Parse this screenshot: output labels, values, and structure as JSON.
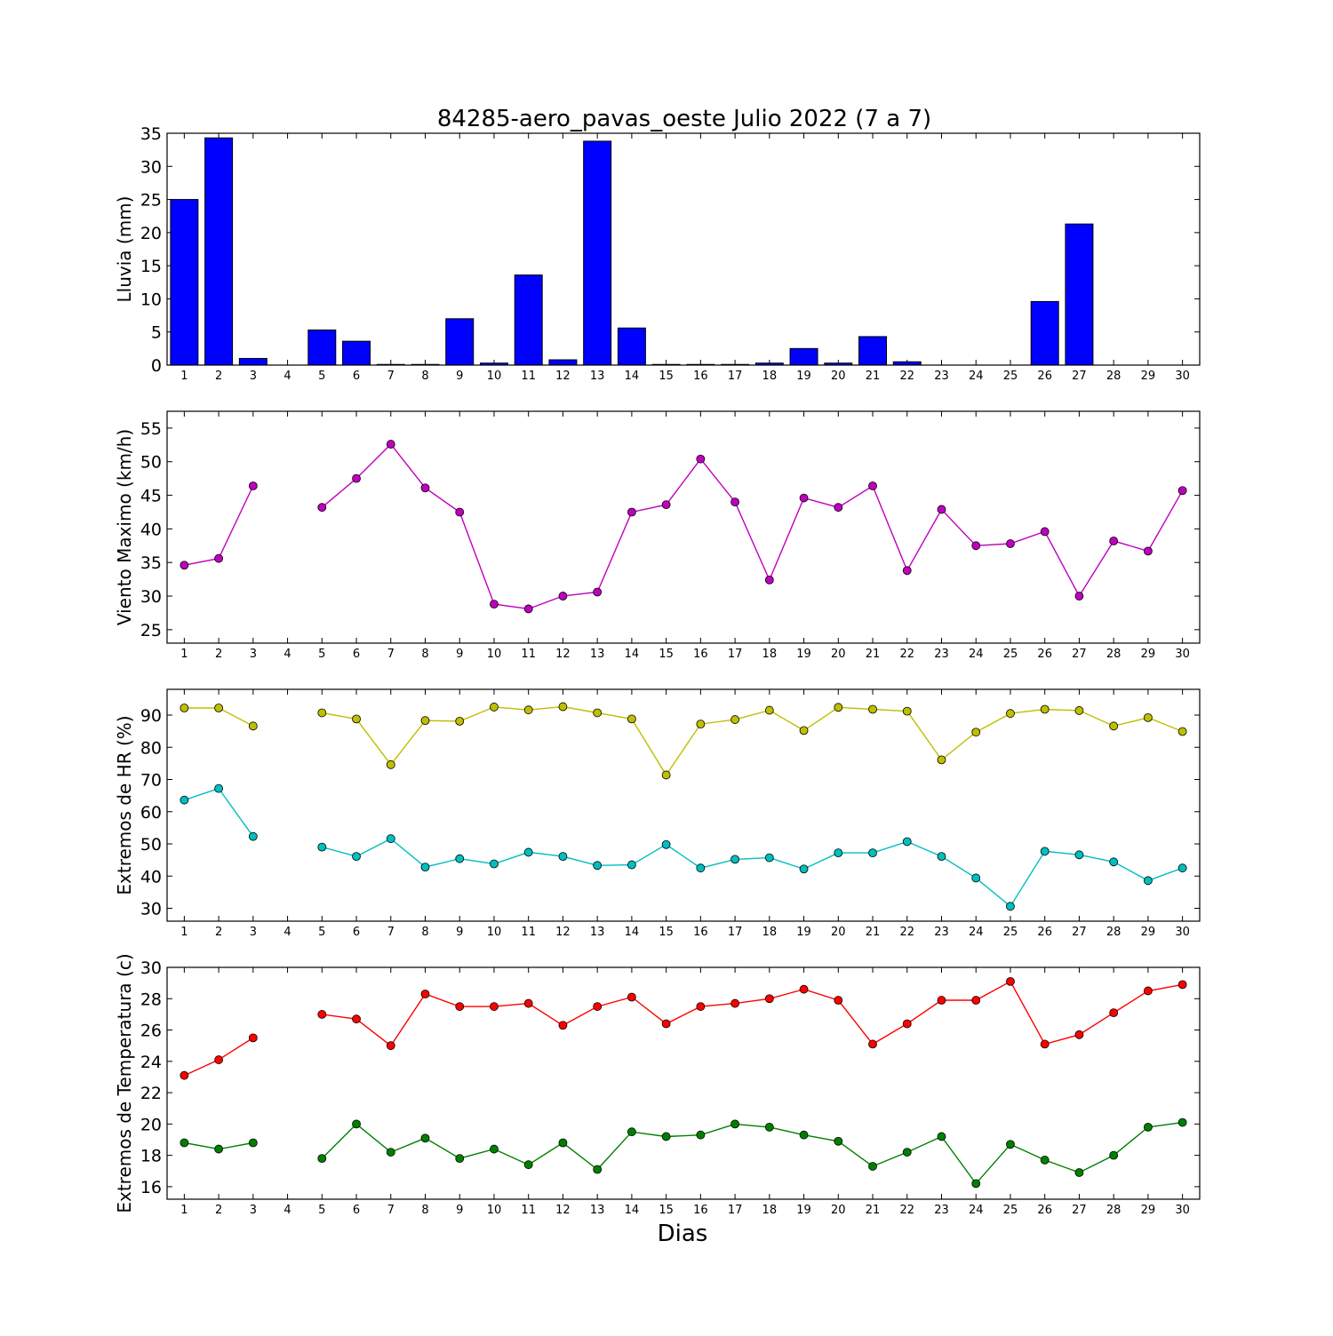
{
  "figure": {
    "title": "84285-aero_pavas_oeste Julio 2022  (7 a 7)",
    "xlabel": "Dias"
  },
  "chart_data": [
    {
      "type": "bar",
      "ylabel": "Lluvia (mm)",
      "x": [
        1,
        2,
        3,
        4,
        5,
        6,
        7,
        8,
        9,
        10,
        11,
        12,
        13,
        14,
        15,
        16,
        17,
        18,
        19,
        20,
        21,
        22,
        23,
        24,
        25,
        26,
        27,
        28,
        29,
        30
      ],
      "xlim": [
        0.5,
        30.5
      ],
      "ylim": [
        0,
        35
      ],
      "yticks": [
        0,
        5,
        10,
        15,
        20,
        25,
        30,
        35
      ],
      "color": "#0000ff",
      "values": [
        25.0,
        34.3,
        1.0,
        0.0,
        5.3,
        3.6,
        0.1,
        0.1,
        7.0,
        0.3,
        13.6,
        0.8,
        33.8,
        5.6,
        0.1,
        0.1,
        0.1,
        0.3,
        2.5,
        0.3,
        4.3,
        0.5,
        0.0,
        0.0,
        0.0,
        9.6,
        21.3,
        0.0,
        0.0,
        0.0
      ]
    },
    {
      "type": "line",
      "ylabel": "Viento Maximo (km/h)",
      "x": [
        1,
        2,
        3,
        4,
        5,
        6,
        7,
        8,
        9,
        10,
        11,
        12,
        13,
        14,
        15,
        16,
        17,
        18,
        19,
        20,
        21,
        22,
        23,
        24,
        25,
        26,
        27,
        28,
        29,
        30
      ],
      "xlim": [
        0.5,
        30.5
      ],
      "ylim": [
        23,
        57.5
      ],
      "yticks": [
        25,
        30,
        35,
        40,
        45,
        50,
        55
      ],
      "series": [
        {
          "color": "#bf00bf",
          "values": [
            34.6,
            35.6,
            46.4,
            null,
            43.2,
            47.5,
            52.6,
            46.1,
            42.5,
            28.8,
            28.1,
            30.0,
            30.6,
            42.5,
            43.6,
            50.4,
            44.0,
            32.4,
            44.6,
            43.2,
            46.4,
            33.8,
            42.9,
            37.5,
            37.8,
            39.6,
            30.0,
            38.2,
            36.7,
            45.7
          ]
        }
      ]
    },
    {
      "type": "line",
      "ylabel": "Extremos de HR (%)",
      "x": [
        1,
        2,
        3,
        4,
        5,
        6,
        7,
        8,
        9,
        10,
        11,
        12,
        13,
        14,
        15,
        16,
        17,
        18,
        19,
        20,
        21,
        22,
        23,
        24,
        25,
        26,
        27,
        28,
        29,
        30
      ],
      "xlim": [
        0.5,
        30.5
      ],
      "ylim": [
        26,
        98
      ],
      "yticks": [
        30,
        40,
        50,
        60,
        70,
        80,
        90
      ],
      "series": [
        {
          "color": "#bfbf00",
          "values": [
            92.2,
            92.2,
            86.6,
            null,
            90.7,
            88.8,
            74.6,
            88.3,
            88.1,
            92.5,
            91.6,
            92.6,
            90.7,
            88.8,
            71.4,
            87.2,
            88.6,
            91.5,
            85.2,
            92.4,
            91.8,
            91.2,
            76.1,
            84.7,
            90.5,
            91.8,
            91.4,
            86.6,
            89.2,
            84.9
          ]
        },
        {
          "color": "#00bfbf",
          "values": [
            63.6,
            67.2,
            52.3,
            null,
            49.0,
            46.1,
            51.6,
            42.8,
            45.4,
            43.8,
            47.4,
            46.1,
            43.3,
            43.5,
            49.8,
            42.5,
            45.2,
            45.7,
            42.2,
            47.2,
            47.2,
            50.7,
            46.1,
            39.4,
            30.6,
            47.7,
            46.6,
            44.4,
            38.6,
            42.5
          ]
        }
      ]
    },
    {
      "type": "line",
      "ylabel": "Extremos de Temperatura (c)",
      "x": [
        1,
        2,
        3,
        4,
        5,
        6,
        7,
        8,
        9,
        10,
        11,
        12,
        13,
        14,
        15,
        16,
        17,
        18,
        19,
        20,
        21,
        22,
        23,
        24,
        25,
        26,
        27,
        28,
        29,
        30
      ],
      "xlim": [
        0.5,
        30.5
      ],
      "ylim": [
        15.2,
        30
      ],
      "yticks": [
        16,
        18,
        20,
        22,
        24,
        26,
        28,
        30
      ],
      "series": [
        {
          "color": "#ff0000",
          "values": [
            23.1,
            24.1,
            25.5,
            null,
            27.0,
            26.7,
            25.0,
            28.3,
            27.5,
            27.5,
            27.7,
            26.3,
            27.5,
            28.1,
            26.4,
            27.5,
            27.7,
            28.0,
            28.6,
            27.9,
            25.1,
            26.4,
            27.9,
            27.9,
            29.1,
            25.1,
            25.7,
            27.1,
            28.5,
            28.9
          ]
        },
        {
          "color": "#008000",
          "values": [
            18.8,
            18.4,
            18.8,
            null,
            17.8,
            20.0,
            18.2,
            19.1,
            17.8,
            18.4,
            17.4,
            18.8,
            17.1,
            19.5,
            19.2,
            19.3,
            20.0,
            19.8,
            19.3,
            18.9,
            17.3,
            18.2,
            19.2,
            16.2,
            18.7,
            17.7,
            16.9,
            18.0,
            19.8,
            20.1
          ]
        }
      ]
    }
  ]
}
